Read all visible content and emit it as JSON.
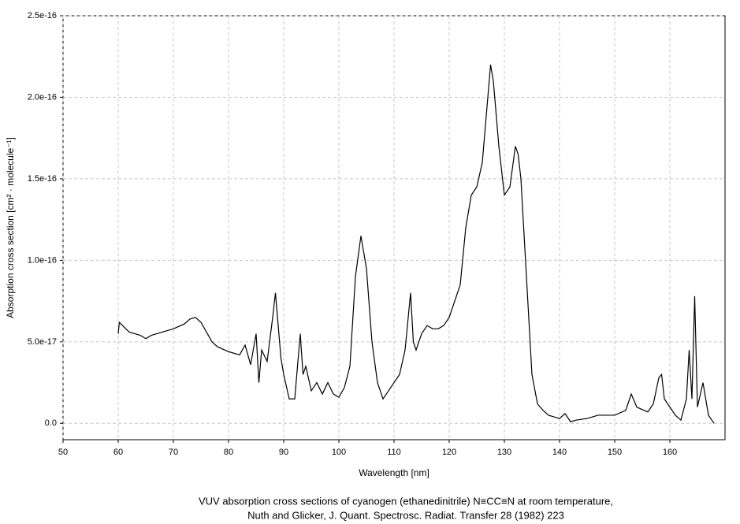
{
  "chart_data": {
    "type": "line",
    "x_label": "Wavelength [nm]",
    "y_label": "Absorption cross section [cm² · molecule⁻¹]",
    "caption": [
      "VUV absorption cross sections of cyanogen (ethanedinitrile) N≡CC≡N at room temperature,",
      "Nuth and Glicker, J. Quant. Spectrosc. Radiat. Transfer 28 (1982) 223"
    ],
    "xlim": [
      50,
      170
    ],
    "xticks": [
      50,
      60,
      70,
      80,
      90,
      100,
      110,
      120,
      130,
      140,
      150,
      160
    ],
    "ylim": [
      -1e-17,
      2.5e-16
    ],
    "yticks": [
      {
        "value": 0,
        "label": "0.0"
      },
      {
        "value": 5e-17,
        "label": "5.0e-17"
      },
      {
        "value": 1e-16,
        "label": "1.0e-16"
      },
      {
        "value": 1.5e-16,
        "label": "1.5e-16"
      },
      {
        "value": 2e-16,
        "label": "2.0e-16"
      },
      {
        "value": 2.5e-16,
        "label": "2.5e-16"
      }
    ],
    "grid": true,
    "series": [
      {
        "color": "#000000",
        "x": [
          60,
          60.2,
          62,
          64,
          65,
          66,
          68,
          70,
          72,
          73,
          74,
          75,
          76,
          77,
          78,
          80,
          82,
          83,
          84,
          85,
          85.5,
          86,
          87,
          88,
          88.5,
          89,
          89.5,
          90,
          91,
          92,
          93,
          93.5,
          94,
          95,
          96,
          97,
          98,
          99,
          100,
          101,
          102,
          103,
          104,
          104.5,
          105,
          106,
          107,
          108,
          109,
          110,
          111,
          112,
          113,
          113.5,
          114,
          115,
          116,
          117,
          118,
          119,
          120,
          121,
          122,
          123,
          124,
          125,
          126,
          127,
          127.5,
          128,
          129,
          130,
          131,
          132,
          132.5,
          133,
          134,
          135,
          136,
          137,
          138,
          139,
          140,
          141,
          142,
          143,
          145,
          147,
          149,
          150,
          152,
          153,
          154,
          156,
          157,
          158,
          158.5,
          159,
          160,
          161,
          162,
          163,
          163.5,
          164,
          164.5,
          165,
          166,
          167,
          168
        ],
        "values": [
          5.5e-17,
          6.2e-17,
          5.6e-17,
          5.4e-17,
          5.2e-17,
          5.4e-17,
          5.6e-17,
          5.8e-17,
          6.1e-17,
          6.4e-17,
          6.5e-17,
          6.2e-17,
          5.6e-17,
          5e-17,
          4.7e-17,
          4.4e-17,
          4.2e-17,
          4.8e-17,
          3.6e-17,
          5.5e-17,
          2.5e-17,
          4.5e-17,
          3.8e-17,
          6.5e-17,
          8e-17,
          6e-17,
          4e-17,
          3e-17,
          1.5e-17,
          1.5e-17,
          5.5e-17,
          3e-17,
          3.5e-17,
          2e-17,
          2.5e-17,
          1.8e-17,
          2.5e-17,
          1.8e-17,
          1.6e-17,
          2.2e-17,
          3.5e-17,
          9e-17,
          1.15e-16,
          1.05e-16,
          9.5e-17,
          5e-17,
          2.5e-17,
          1.5e-17,
          2e-17,
          2.5e-17,
          3e-17,
          4.5e-17,
          8e-17,
          5e-17,
          4.5e-17,
          5.5e-17,
          6e-17,
          5.8e-17,
          5.8e-17,
          6e-17,
          6.5e-17,
          7.5e-17,
          8.5e-17,
          1.2e-16,
          1.4e-16,
          1.45e-16,
          1.6e-16,
          2e-16,
          2.2e-16,
          2.1e-16,
          1.7e-16,
          1.4e-16,
          1.45e-16,
          1.7e-16,
          1.65e-16,
          1.5e-16,
          9e-17,
          3e-17,
          1.2e-17,
          8e-18,
          5e-18,
          4e-18,
          3e-18,
          6e-18,
          1e-18,
          2e-18,
          3e-18,
          5e-18,
          5e-18,
          5e-18,
          8e-18,
          1.8e-17,
          1e-17,
          7e-18,
          1.2e-17,
          2.8e-17,
          3e-17,
          1.5e-17,
          1e-17,
          5e-18,
          2e-18,
          1.5e-17,
          4.5e-17,
          1.5e-17,
          7.8e-17,
          1e-17,
          2.5e-17,
          5e-18,
          0
        ]
      }
    ]
  }
}
